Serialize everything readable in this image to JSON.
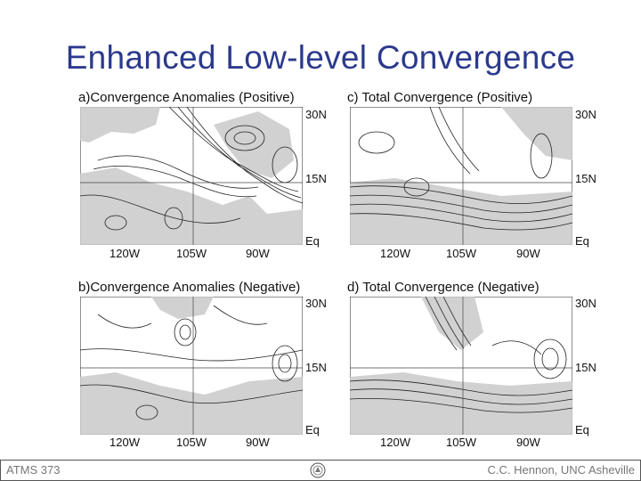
{
  "slide": {
    "title": "Enhanced Low-level Convergence",
    "footer_left": "ATMS 373",
    "footer_right": "C.C. Hennon, UNC Asheville"
  },
  "panels": [
    {
      "id": "a",
      "label": "a)Convergence Anomalies (Positive)"
    },
    {
      "id": "c",
      "label": "c) Total Convergence (Positive)"
    },
    {
      "id": "b",
      "label": "b)Convergence Anomalies (Negative)"
    },
    {
      "id": "d",
      "label": "d) Total Convergence (Negative)"
    }
  ],
  "axes": {
    "lon_labels": [
      "120W",
      "105W",
      "90W"
    ],
    "lat_labels": [
      "30N",
      "15N",
      "Eq"
    ]
  }
}
